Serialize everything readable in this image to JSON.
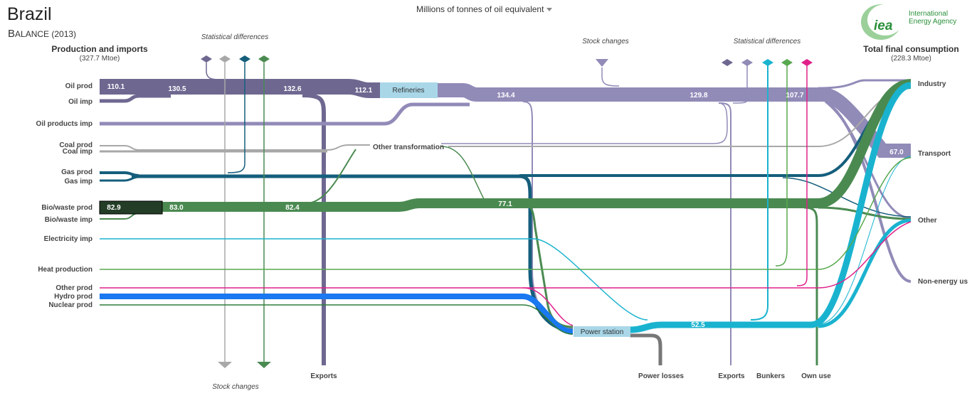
{
  "header": {
    "country": "Brazil",
    "subtitle_initial": "B",
    "subtitle_rest": "ALANCE (2013)",
    "unit_label": "Millions of tonnes of oil equivalent",
    "left_title": "Production and imports",
    "left_total": "(327.7 Mtoe)",
    "right_title": "Total final consumption",
    "right_total": "(228.3 Mtoe)"
  },
  "logo": {
    "mark": "iea",
    "name_line1": "International",
    "name_line2": "Energy Agency"
  },
  "colors": {
    "oil": "#6e6891",
    "oil_products": "#918bb8",
    "coal": "#a8a8a8",
    "gas": "#155e7c",
    "bio": "#4a8a51",
    "bio_dark": "#233d26",
    "electricity": "#1ab3cf",
    "heat": "#58a84f",
    "other": "#e0218a",
    "hydro": "#1a78f0",
    "nuclear": "#2f7d3a",
    "losses": "#777777",
    "refineries_box": "#a9d7e8",
    "power_box": "#a9d7e8"
  },
  "sources": [
    {
      "label": "Oil prod"
    },
    {
      "label": "Oil imp"
    },
    {
      "label": "Oil products imp"
    },
    {
      "label": "Coal prod"
    },
    {
      "label": "Coal imp"
    },
    {
      "label": "Gas prod"
    },
    {
      "label": "Gas imp"
    },
    {
      "label": "Bio/waste prod"
    },
    {
      "label": "Bio/waste imp"
    },
    {
      "label": "Electricity imp"
    },
    {
      "label": "Heat production"
    },
    {
      "label": "Other prod"
    },
    {
      "label": "Hydro prod"
    },
    {
      "label": "Nuclear prod"
    }
  ],
  "flow_values": {
    "oil_prod": "110.1",
    "oil_a": "130.5",
    "oil_b": "132.6",
    "oil_c": "112.1",
    "oil_products_a": "134.4",
    "oil_products_b": "129.8",
    "oil_products_c": "107.7",
    "transport": "67.0",
    "bio_prod": "82.9",
    "bio_a": "83.0",
    "bio_b": "82.4",
    "bio_c": "77.1",
    "electricity": "52.5"
  },
  "nodes": {
    "refineries": "Refineries",
    "power_station": "Power station",
    "other_transformation": "Other transformation"
  },
  "annotations": {
    "stat_diff_left": "Statistical differences",
    "stat_diff_right": "Statistical differences",
    "stock_changes_top": "Stock  changes",
    "stock_changes_bottom": "Stock changes"
  },
  "bottom_labels": {
    "exports_left": "Exports",
    "power_losses": "Power losses",
    "exports_right": "Exports",
    "bunkers": "Bunkers",
    "own_use": "Own use"
  },
  "sinks": [
    {
      "label": "Industry"
    },
    {
      "label": "Transport"
    },
    {
      "label": "Other"
    },
    {
      "label": "Non-energy us"
    }
  ]
}
